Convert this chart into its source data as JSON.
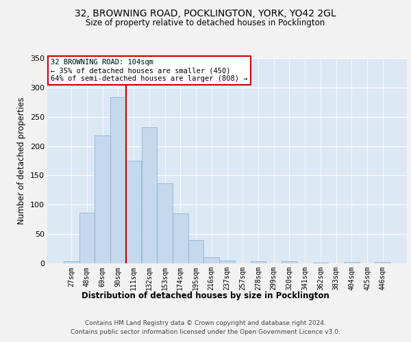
{
  "title_line1": "32, BROWNING ROAD, POCKLINGTON, YORK, YO42 2GL",
  "title_line2": "Size of property relative to detached houses in Pocklington",
  "xlabel": "Distribution of detached houses by size in Pocklington",
  "ylabel": "Number of detached properties",
  "bar_values": [
    3,
    86,
    218,
    283,
    175,
    232,
    137,
    85,
    40,
    10,
    5,
    0,
    3,
    0,
    3,
    0,
    1,
    0,
    2,
    0,
    2
  ],
  "bar_labels": [
    "27sqm",
    "48sqm",
    "69sqm",
    "90sqm",
    "111sqm",
    "132sqm",
    "153sqm",
    "174sqm",
    "195sqm",
    "216sqm",
    "237sqm",
    "257sqm",
    "278sqm",
    "299sqm",
    "320sqm",
    "341sqm",
    "362sqm",
    "383sqm",
    "404sqm",
    "425sqm",
    "446sqm"
  ],
  "bar_color": "#c5d8ed",
  "bar_edgecolor": "#7bafd4",
  "bar_linewidth": 0.5,
  "vline_color": "#cc0000",
  "vline_x": 3.5,
  "annotation_title": "32 BROWNING ROAD: 104sqm",
  "annotation_line1": "← 35% of detached houses are smaller (450)",
  "annotation_line2": "64% of semi-detached houses are larger (808) →",
  "background_color": "#dde8f5",
  "fig_background": "#f2f2f2",
  "grid_color": "#ffffff",
  "ylim": [
    0,
    350
  ],
  "yticks": [
    0,
    50,
    100,
    150,
    200,
    250,
    300,
    350
  ],
  "footer_line1": "Contains HM Land Registry data © Crown copyright and database right 2024.",
  "footer_line2": "Contains public sector information licensed under the Open Government Licence v3.0."
}
